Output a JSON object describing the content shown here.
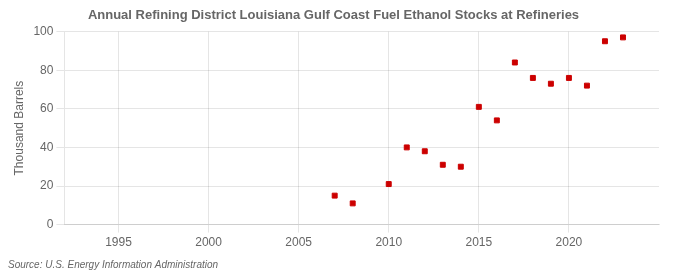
{
  "chart_data": {
    "type": "scatter",
    "title": "Annual Refining District Louisiana Gulf Coast Fuel Ethanol Stocks at Refineries",
    "ylabel": "Thousand Barrels",
    "annotation": "Source: U.S. Energy Information Administration",
    "x": [
      2007,
      2008,
      2010,
      2011,
      2012,
      2013,
      2014,
      2015,
      2016,
      2017,
      2018,
      2019,
      2020,
      2021,
      2022,
      2023
    ],
    "values": [
      15,
      11,
      21,
      40,
      38,
      31,
      30,
      61,
      54,
      84,
      76,
      73,
      76,
      72,
      95,
      97
    ],
    "color": "#cc0000",
    "marker": "square",
    "xlim": [
      1992,
      2025
    ],
    "xticks": [
      1995,
      2000,
      2005,
      2010,
      2015,
      2020
    ],
    "ylim": [
      0,
      100
    ],
    "yticks": [
      0,
      20,
      40,
      60,
      80,
      100
    ],
    "grid": true
  }
}
